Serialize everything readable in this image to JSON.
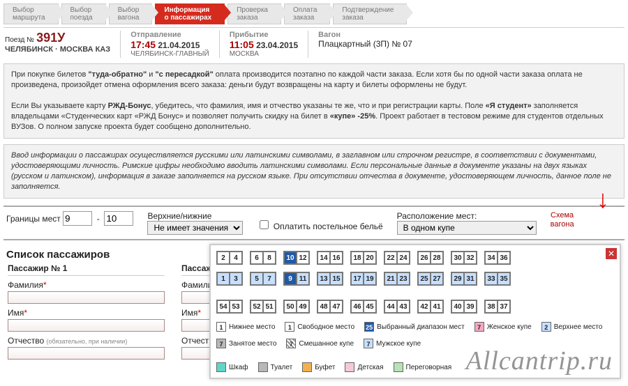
{
  "steps": [
    "Выбор\nмаршрута",
    "Выбор\nпоезда",
    "Выбор\nвагона",
    "Информация\nо пассажирах",
    "Проверка\nзаказа",
    "Оплата\nзаказа",
    "Подтверждение\nзаказа"
  ],
  "active_step": 3,
  "train": {
    "label": "Поезд №",
    "number": "391У",
    "route": "ЧЕЛЯБИНСК · МОСКВА КАЗ",
    "dep_label": "Отправление",
    "dep_time": "17:45",
    "dep_date": "21.04.2015",
    "dep_station": "ЧЕЛЯБИНСК-ГЛАВНЫЙ",
    "arr_label": "Прибытие",
    "arr_time": "11:05",
    "arr_date": "23.04.2015",
    "arr_station": "МОСКВА",
    "car_label": "Вагон",
    "car_value": "Плацкартный (3П) № 07"
  },
  "notice1": "При покупке билетов <b>\"туда-обратно\"</b> и <b>\"с пересадкой\"</b> оплата производится поэтапно по каждой части заказа. Если хотя бы по одной части заказа оплата не произведена, произойдет отмена оформления всего заказа: деньги будут возвращены на карту и билеты оформлены не будут.<br><br>Если Вы указываете карту <b>РЖД-Бонус</b>, убедитесь, что фамилия, имя и отчество указаны те же, что и при регистрации карты. Поле <b>«Я студент»</b> заполняется владельцами «Студенческих карт «РЖД Бонус» и позволяет получить скидку на билет в <b>«купе» -25%</b>. Проект работает в тестовом режиме для студентов отдельных ВУЗов. О полном запуске проекта будет сообщено дополнительно.",
  "notice2": "Ввод информации о пассажирах осуществляется русскими или латинскими символами, в заглавном или строчном регистре, в соответствии с документами, удостоверяющими личность. Римские цифры необходимо вводить латинскими символами. Если персональные данные в документе указаны на двух языках (русском и латинском), информация в заказе заполняется на русском языке. При отсутствии отчества в документе, удостоверяющем личность, данное поле не заполняется.",
  "controls": {
    "bounds_label": "Границы мест",
    "from": "9",
    "to": "10",
    "level_label": "Верхние/нижние",
    "level_selected": "Не имеет значения",
    "bedding": "Оплатить постельное бельё",
    "layout_label": "Расположение мест:",
    "layout_selected": "В одном купе",
    "scheme": "Схема\nвагона"
  },
  "pass_heading": "Список пассажиров",
  "passengers": [
    {
      "hdr": "Пассажир № 1"
    },
    {
      "hdr": "Пассажир №"
    }
  ],
  "labels": {
    "fam": "Фамилия",
    "name": "Имя",
    "pat": "Отчество",
    "pat_note": "(обязательно, при наличии)"
  },
  "seatmap": {
    "top": [
      [
        "2",
        "4"
      ],
      [
        "6",
        "8"
      ],
      [
        "10",
        "12"
      ],
      [
        "14",
        "16"
      ],
      [
        "18",
        "20"
      ],
      [
        "22",
        "24"
      ],
      [
        "26",
        "28"
      ],
      [
        "30",
        "32"
      ],
      [
        "34",
        "36"
      ]
    ],
    "bot": [
      [
        "1",
        "3"
      ],
      [
        "5",
        "7"
      ],
      [
        "9",
        "11"
      ],
      [
        "13",
        "15"
      ],
      [
        "17",
        "19"
      ],
      [
        "21",
        "23"
      ],
      [
        "25",
        "27"
      ],
      [
        "29",
        "31"
      ],
      [
        "33",
        "35"
      ]
    ],
    "side": [
      [
        "54",
        "53"
      ],
      [
        "52",
        "51"
      ],
      [
        "50",
        "49"
      ],
      [
        "48",
        "47"
      ],
      [
        "46",
        "45"
      ],
      [
        "44",
        "43"
      ],
      [
        "42",
        "41"
      ],
      [
        "40",
        "39"
      ],
      [
        "38",
        "37"
      ]
    ],
    "selected": [
      "10",
      "9"
    ]
  },
  "legend": {
    "lower": "Нижнее место",
    "upper": "Верхнее место",
    "free": "Свободное место",
    "busy": "Занятое место",
    "range": "Выбранный диапазон мест",
    "mixed": "Смешанное купе",
    "female": "Женское купе",
    "male": "Мужское купе",
    "wardrobe": "Шкаф",
    "toilet": "Туалет",
    "buffet": "Буфет",
    "child": "Детская",
    "meeting": "Переговорная",
    "n1": "1",
    "n2": "2",
    "n7": "7",
    "n25": "25"
  },
  "watermark": "Allcantrip.ru"
}
